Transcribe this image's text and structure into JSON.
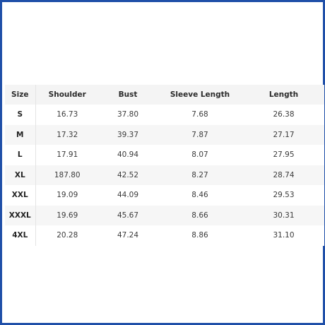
{
  "table": {
    "headers": [
      "Size",
      "Shoulder",
      "Bust",
      "Sleeve Length",
      "Length"
    ],
    "rows": [
      [
        "S",
        "16.73",
        "37.80",
        "7.68",
        "26.38"
      ],
      [
        "M",
        "17.32",
        "39.37",
        "7.87",
        "27.17"
      ],
      [
        "L",
        "17.91",
        "40.94",
        "8.07",
        "27.95"
      ],
      [
        "XL",
        "187.80",
        "42.52",
        "8.27",
        "28.74"
      ],
      [
        "XXL",
        "19.09",
        "44.09",
        "8.46",
        "29.53"
      ],
      [
        "XXXL",
        "19.69",
        "45.67",
        "8.66",
        "30.31"
      ],
      [
        "4XL",
        "20.28",
        "47.24",
        "8.86",
        "31.10"
      ]
    ]
  },
  "colors": {
    "frame_border": "#1f4fa8",
    "header_background": "#f4f4f4",
    "striped_row_background": "#f6f6f6"
  }
}
